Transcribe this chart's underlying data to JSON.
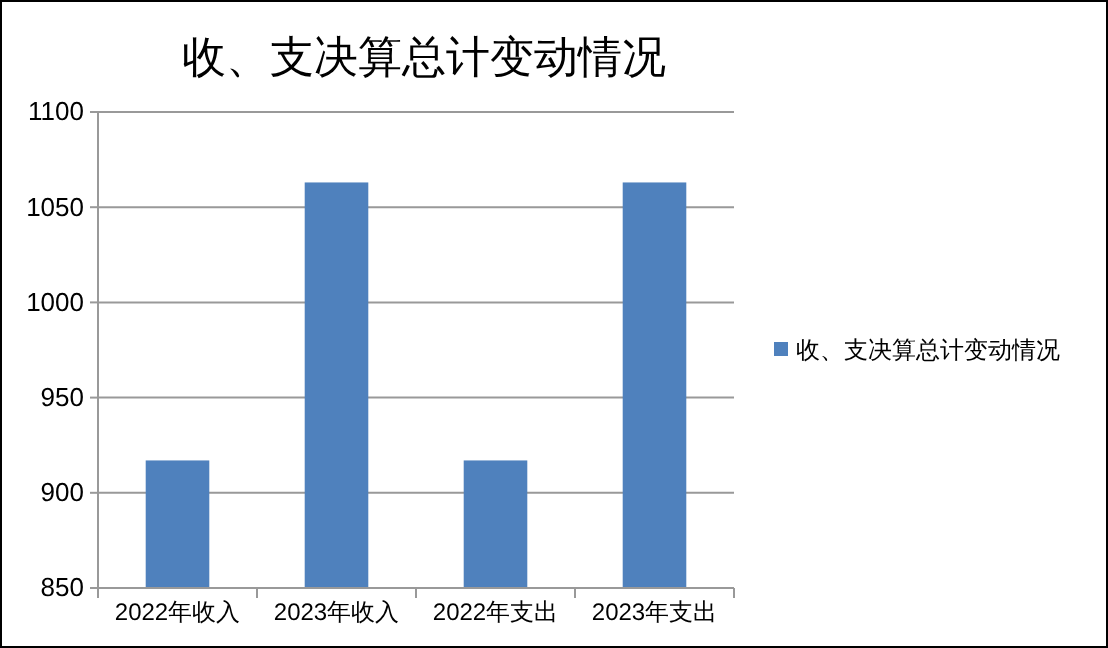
{
  "chart_data": {
    "type": "bar",
    "title": "收、支决算总计变动情况",
    "categories": [
      "2022年收入",
      "2023年收入",
      "2022年支出",
      "2023年支出"
    ],
    "series": [
      {
        "name": "收、支决算总计变动情况",
        "color": "#4f81bd",
        "values": [
          917,
          1063,
          917,
          1063
        ]
      }
    ],
    "ylim": [
      850,
      1100
    ],
    "yticks": [
      850,
      900,
      950,
      1000,
      1050,
      1100
    ],
    "grid": "y",
    "legend": "right"
  }
}
